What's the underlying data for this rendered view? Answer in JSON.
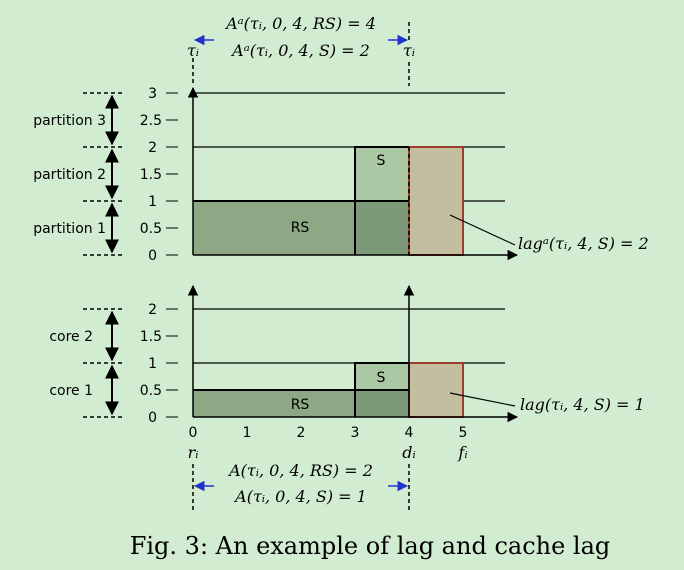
{
  "top": {
    "annot_line1": "Aᵃ(τᵢ, 0, 4, RS) = 4",
    "annot_line2": "Aᵃ(τᵢ, 0, 4, S) = 2",
    "tau_left": "τᵢ",
    "tau_right": "τᵢ",
    "y_ticks": [
      "0",
      "0.5",
      "1",
      "1.5",
      "2",
      "2.5",
      "3"
    ],
    "partitions": [
      "partition 1",
      "partition 2",
      "partition 3"
    ],
    "rs_label": "RS",
    "s_label": "S",
    "lag_label": "lagᵃ(τᵢ, 4, S) = 2"
  },
  "bottom": {
    "y_ticks": [
      "0",
      "0.5",
      "1",
      "1.5",
      "2"
    ],
    "cores": [
      "core 1",
      "core 2"
    ],
    "rs_label": "RS",
    "s_label": "S",
    "lag_label": "lag(τᵢ, 4, S) = 1",
    "x_ticks": [
      "0",
      "1",
      "2",
      "3",
      "4",
      "5"
    ],
    "r_label": "rᵢ",
    "d_label": "dᵢ",
    "f_label": "fᵢ",
    "annot_line1": "A(τᵢ, 0, 4, RS) = 2",
    "annot_line2": "A(τᵢ, 0, 4, S) = 1"
  },
  "caption": "Fig. 3: An example of lag and cache lag",
  "colors": {
    "background": "#d1ecd0",
    "rs_fill": "#8ea886",
    "s_fill": "#aac8a4",
    "overlap_fill": "#7d9a78",
    "future_fill": "#c4bea0",
    "future_stroke": "#a23b2e",
    "arrow_blue": "#2233cc"
  }
}
